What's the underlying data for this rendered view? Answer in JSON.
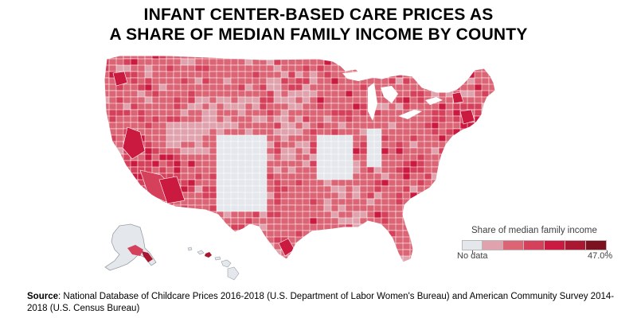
{
  "title": {
    "line1": "INFANT CENTER-BASED CARE PRICES AS",
    "line2": "A SHARE OF MEDIAN FAMILY INCOME BY COUNTY"
  },
  "legend": {
    "title": "Share of median family income",
    "min_label": "No data",
    "max_label": "47.0%",
    "bins": [
      {
        "color": "#e4e7ec",
        "meaning": "no-data"
      },
      {
        "color": "#e0a2ad"
      },
      {
        "color": "#db6575"
      },
      {
        "color": "#d5405a"
      },
      {
        "color": "#cb1a40"
      },
      {
        "color": "#a91730"
      },
      {
        "color": "#7c1120"
      }
    ]
  },
  "colors": {
    "no_data": "#e4e7ec",
    "light": "#e0a2ad",
    "mid": "#db6575",
    "high": "#d5405a",
    "very_high": "#cb1a40",
    "max": "#7c1120",
    "border": "#ffffff",
    "alaska_outline": "#9aa0a6"
  },
  "source": {
    "label": "Source",
    "text": ": National Database of Childcare Prices 2016-2018 (U.S. Department of Labor Women's Bureau) and American Community Survey 2014-2018 (U.S. Census Bureau)"
  }
}
